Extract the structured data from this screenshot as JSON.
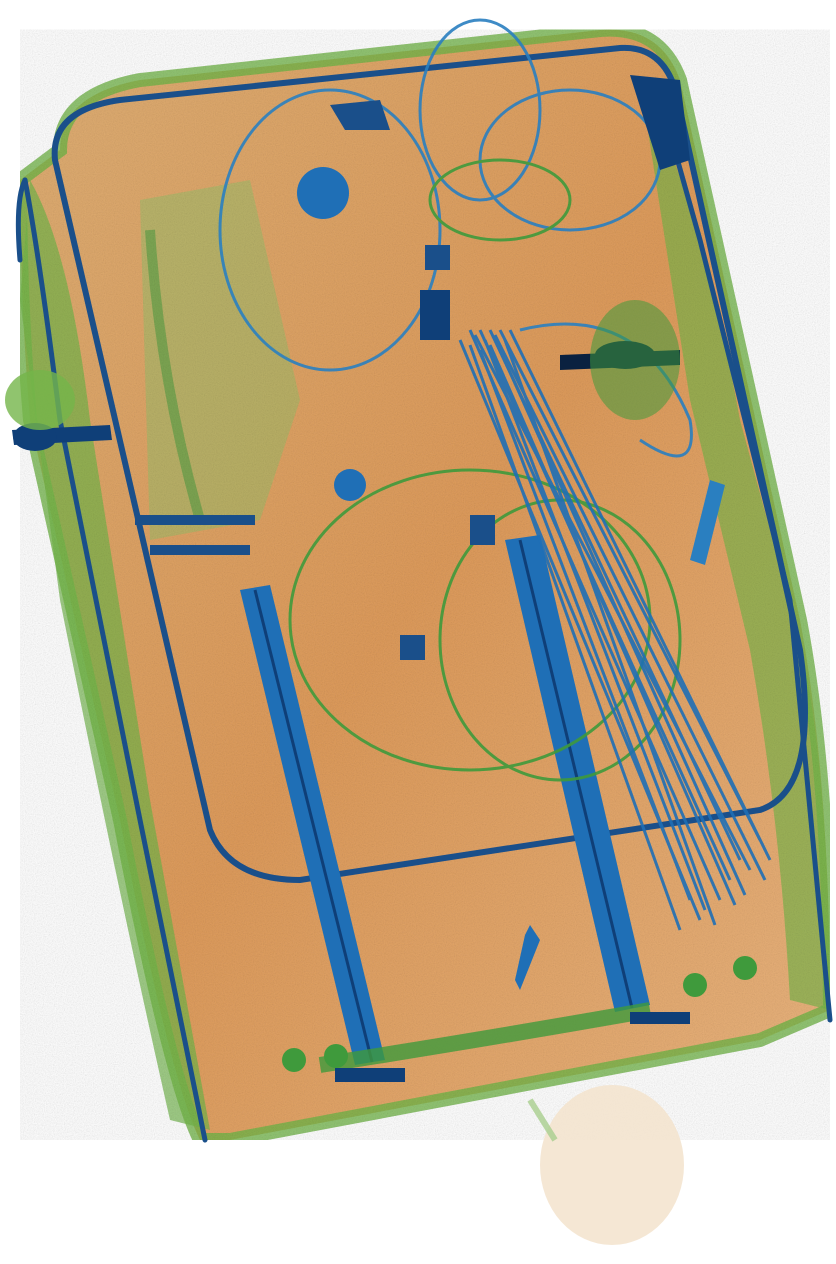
{
  "image": {
    "kind": "xray-baggage-scan",
    "subject": "suitcase",
    "palette": {
      "background": "#ffffff",
      "organic": "#d9893a",
      "organic_light": "#f0c48e",
      "mixed": "#74b54a",
      "mixed_dark": "#3f9a3c",
      "metal": "#1f6fb6",
      "metal_dark": "#0f3f78",
      "dense": "#0a2140"
    }
  }
}
